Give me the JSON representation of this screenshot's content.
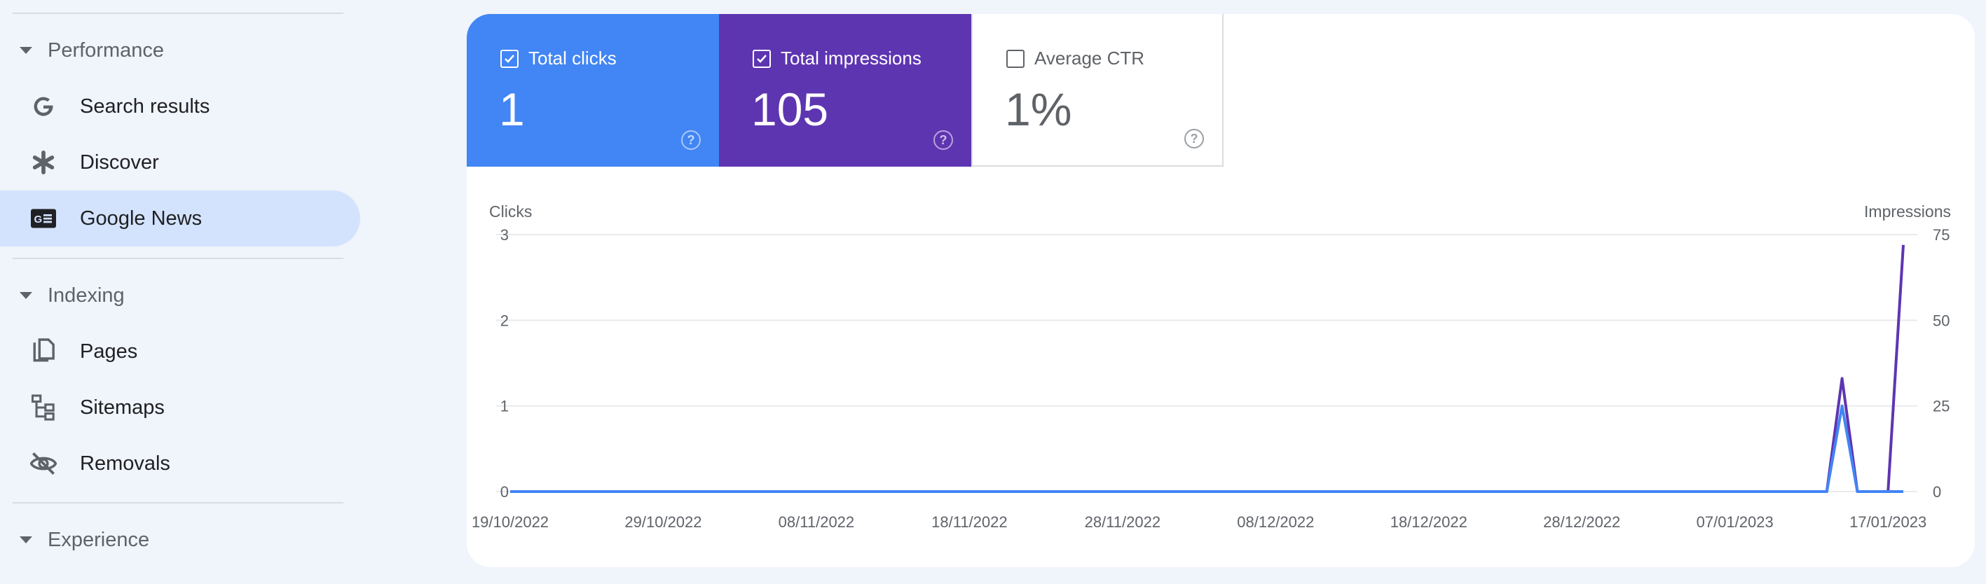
{
  "sidebar": {
    "sections": [
      {
        "label": "Performance"
      },
      {
        "label": "Indexing"
      },
      {
        "label": "Experience"
      }
    ],
    "items": [
      {
        "label": "Search results",
        "icon": "google-g-icon"
      },
      {
        "label": "Discover",
        "icon": "asterisk-icon"
      },
      {
        "label": "Google News",
        "icon": "news-icon",
        "selected": true
      },
      {
        "label": "Pages",
        "icon": "pages-icon"
      },
      {
        "label": "Sitemaps",
        "icon": "sitemap-icon"
      },
      {
        "label": "Removals",
        "icon": "eye-off-icon"
      }
    ]
  },
  "metrics": [
    {
      "label": "Total clicks",
      "value": "1",
      "checked": true,
      "color": "#4285f4"
    },
    {
      "label": "Total impressions",
      "value": "105",
      "checked": true,
      "color": "#5e35b1"
    },
    {
      "label": "Average CTR",
      "value": "1%",
      "checked": false,
      "color": "#ffffff"
    }
  ],
  "chart_data": {
    "type": "line",
    "ylabel_left": "Clicks",
    "ylabel_right": "Impressions",
    "ylim_left": [
      0,
      3
    ],
    "ylim_right": [
      0,
      75
    ],
    "yticks_left": [
      "0",
      "1",
      "2",
      "3"
    ],
    "yticks_right": [
      "0",
      "25",
      "50",
      "75"
    ],
    "xticks": [
      "19/10/2022",
      "29/10/2022",
      "08/11/2022",
      "18/11/2022",
      "28/11/2022",
      "08/12/2022",
      "18/12/2022",
      "28/12/2022",
      "07/01/2023",
      "17/01/2023"
    ],
    "x_start": "2022-10-19",
    "x_end": "2023-01-18",
    "grid": true,
    "series": [
      {
        "name": "Total impressions",
        "axis": "right",
        "color": "#5e35b1",
        "points": [
          {
            "date": "2022-10-19",
            "value": 0
          },
          {
            "date": "2023-01-13",
            "value": 0
          },
          {
            "date": "2023-01-14",
            "value": 33
          },
          {
            "date": "2023-01-15",
            "value": 0
          },
          {
            "date": "2023-01-17",
            "value": 0
          },
          {
            "date": "2023-01-18",
            "value": 72
          }
        ]
      },
      {
        "name": "Total clicks",
        "axis": "left",
        "color": "#4285f4",
        "points": [
          {
            "date": "2022-10-19",
            "value": 0
          },
          {
            "date": "2023-01-13",
            "value": 0
          },
          {
            "date": "2023-01-14",
            "value": 1
          },
          {
            "date": "2023-01-15",
            "value": 0
          },
          {
            "date": "2023-01-18",
            "value": 0
          }
        ]
      }
    ]
  }
}
